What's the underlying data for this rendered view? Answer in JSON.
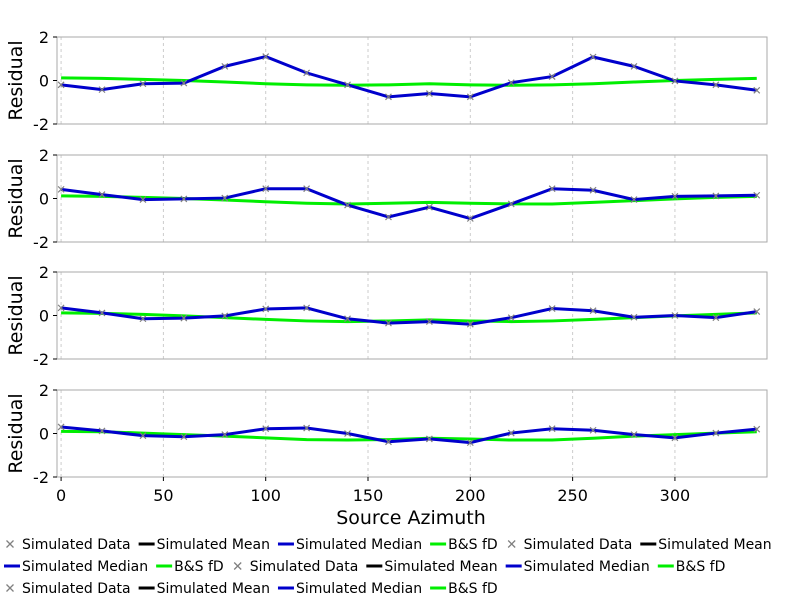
{
  "figure": {
    "xlabel": "Source Azimuth",
    "ylabel": "Residual",
    "x_ticks": [
      0,
      50,
      100,
      150,
      200,
      250,
      300
    ],
    "y_ticks": [
      -2,
      0,
      2
    ],
    "colors": {
      "data": "#808080",
      "mean": "#000000",
      "median": "#0000cc",
      "bs_fd": "#00ee00",
      "grid": "#cccccc",
      "frame": "#aaaaaa"
    }
  },
  "legend": [
    {
      "label": "Simulated Data",
      "kind": "marker",
      "color": "#808080"
    },
    {
      "label": "Simulated Mean",
      "kind": "line",
      "color": "#000000"
    },
    {
      "label": "Simulated Median",
      "kind": "line",
      "color": "#0000cc"
    },
    {
      "label": "B&S fD",
      "kind": "line",
      "color": "#00ee00"
    },
    {
      "label": "Simulated Data",
      "kind": "marker",
      "color": "#808080"
    },
    {
      "label": "Simulated Mean",
      "kind": "line",
      "color": "#000000"
    },
    {
      "label": "Simulated Median",
      "kind": "line",
      "color": "#0000cc"
    },
    {
      "label": "B&S fD",
      "kind": "line",
      "color": "#00ee00"
    },
    {
      "label": "Simulated Data",
      "kind": "marker",
      "color": "#808080"
    },
    {
      "label": "Simulated Mean",
      "kind": "line",
      "color": "#000000"
    },
    {
      "label": "Simulated Median",
      "kind": "line",
      "color": "#0000cc"
    },
    {
      "label": "B&S fD",
      "kind": "line",
      "color": "#00ee00"
    },
    {
      "label": "Simulated Data",
      "kind": "marker",
      "color": "#808080"
    },
    {
      "label": "Simulated Mean",
      "kind": "line",
      "color": "#000000"
    },
    {
      "label": "Simulated Median",
      "kind": "line",
      "color": "#0000cc"
    },
    {
      "label": "B&S fD",
      "kind": "line",
      "color": "#00ee00"
    }
  ],
  "chart_data": [
    {
      "type": "line",
      "xlabel": "",
      "ylabel": "Residual",
      "xlim": [
        -2,
        345
      ],
      "ylim": [
        -2,
        2
      ],
      "grid": true,
      "x": [
        0,
        20,
        40,
        60,
        80,
        100,
        120,
        140,
        160,
        180,
        200,
        220,
        240,
        260,
        280,
        300,
        320,
        340
      ],
      "series": [
        {
          "name": "Simulated Data",
          "style": "marker",
          "values": [
            -0.2,
            -0.42,
            -0.15,
            -0.12,
            0.65,
            1.1,
            0.35,
            -0.2,
            -0.75,
            -0.6,
            -0.75,
            -0.1,
            0.18,
            1.08,
            0.65,
            -0.02,
            -0.2,
            -0.45
          ]
        },
        {
          "name": "Simulated Mean",
          "style": "line",
          "values": [
            -0.2,
            -0.42,
            -0.15,
            -0.12,
            0.65,
            1.1,
            0.35,
            -0.2,
            -0.75,
            -0.6,
            -0.75,
            -0.1,
            0.18,
            1.08,
            0.65,
            -0.02,
            -0.2,
            -0.45
          ]
        },
        {
          "name": "Simulated Median",
          "style": "line",
          "values": [
            -0.2,
            -0.42,
            -0.15,
            -0.12,
            0.65,
            1.1,
            0.35,
            -0.2,
            -0.75,
            -0.6,
            -0.75,
            -0.1,
            0.18,
            1.08,
            0.65,
            -0.02,
            -0.2,
            -0.45
          ]
        },
        {
          "name": "B&S fD",
          "style": "line",
          "values": [
            0.12,
            0.1,
            0.05,
            0.0,
            -0.07,
            -0.15,
            -0.2,
            -0.22,
            -0.2,
            -0.15,
            -0.2,
            -0.22,
            -0.2,
            -0.15,
            -0.07,
            0.0,
            0.05,
            0.1
          ]
        }
      ]
    },
    {
      "type": "line",
      "xlabel": "",
      "ylabel": "Residual",
      "xlim": [
        -2,
        345
      ],
      "ylim": [
        -2,
        2
      ],
      "grid": true,
      "x": [
        0,
        20,
        40,
        60,
        80,
        100,
        120,
        140,
        160,
        180,
        200,
        220,
        240,
        260,
        280,
        300,
        320,
        340
      ],
      "series": [
        {
          "name": "Simulated Data",
          "style": "marker",
          "values": [
            0.42,
            0.18,
            -0.05,
            -0.02,
            0.02,
            0.45,
            0.45,
            -0.3,
            -0.85,
            -0.4,
            -0.92,
            -0.25,
            0.45,
            0.38,
            -0.05,
            0.1,
            0.12,
            0.15
          ]
        },
        {
          "name": "Simulated Mean",
          "style": "line",
          "values": [
            0.42,
            0.18,
            -0.05,
            -0.02,
            0.02,
            0.45,
            0.45,
            -0.3,
            -0.85,
            -0.4,
            -0.92,
            -0.25,
            0.45,
            0.38,
            -0.05,
            0.1,
            0.12,
            0.15
          ]
        },
        {
          "name": "Simulated Median",
          "style": "line",
          "values": [
            0.42,
            0.18,
            -0.05,
            -0.02,
            0.02,
            0.45,
            0.45,
            -0.3,
            -0.85,
            -0.4,
            -0.92,
            -0.25,
            0.45,
            0.38,
            -0.05,
            0.1,
            0.12,
            0.15
          ]
        },
        {
          "name": "B&S fD",
          "style": "line",
          "values": [
            0.12,
            0.1,
            0.05,
            0.0,
            -0.07,
            -0.15,
            -0.22,
            -0.25,
            -0.22,
            -0.18,
            -0.22,
            -0.25,
            -0.25,
            -0.18,
            -0.1,
            -0.02,
            0.05,
            0.1
          ]
        }
      ]
    },
    {
      "type": "line",
      "xlabel": "",
      "ylabel": "Residual",
      "xlim": [
        -2,
        345
      ],
      "ylim": [
        -2,
        2
      ],
      "grid": true,
      "x": [
        0,
        20,
        40,
        60,
        80,
        100,
        120,
        140,
        160,
        180,
        200,
        220,
        240,
        260,
        280,
        300,
        320,
        340
      ],
      "series": [
        {
          "name": "Simulated Data",
          "style": "marker",
          "values": [
            0.35,
            0.12,
            -0.15,
            -0.12,
            -0.02,
            0.3,
            0.35,
            -0.15,
            -0.35,
            -0.28,
            -0.4,
            -0.1,
            0.32,
            0.22,
            -0.08,
            0.0,
            -0.1,
            0.18
          ]
        },
        {
          "name": "Simulated Mean",
          "style": "line",
          "values": [
            0.35,
            0.12,
            -0.15,
            -0.12,
            -0.02,
            0.3,
            0.35,
            -0.15,
            -0.35,
            -0.28,
            -0.4,
            -0.1,
            0.32,
            0.22,
            -0.08,
            0.0,
            -0.1,
            0.18
          ]
        },
        {
          "name": "Simulated Median",
          "style": "line",
          "values": [
            0.35,
            0.12,
            -0.15,
            -0.12,
            -0.02,
            0.3,
            0.35,
            -0.15,
            -0.35,
            -0.28,
            -0.4,
            -0.1,
            0.32,
            0.22,
            -0.08,
            0.0,
            -0.1,
            0.18
          ]
        },
        {
          "name": "B&S fD",
          "style": "line",
          "values": [
            0.12,
            0.1,
            0.05,
            -0.02,
            -0.1,
            -0.18,
            -0.25,
            -0.28,
            -0.25,
            -0.2,
            -0.25,
            -0.28,
            -0.25,
            -0.18,
            -0.1,
            -0.02,
            0.05,
            0.12
          ]
        }
      ]
    },
    {
      "type": "line",
      "xlabel": "Source Azimuth",
      "ylabel": "Residual",
      "xlim": [
        -2,
        345
      ],
      "ylim": [
        -2,
        2
      ],
      "grid": true,
      "x": [
        0,
        20,
        40,
        60,
        80,
        100,
        120,
        140,
        160,
        180,
        200,
        220,
        240,
        260,
        280,
        300,
        320,
        340
      ],
      "series": [
        {
          "name": "Simulated Data",
          "style": "marker",
          "values": [
            0.3,
            0.12,
            -0.1,
            -0.15,
            -0.05,
            0.22,
            0.25,
            0.0,
            -0.38,
            -0.25,
            -0.42,
            0.02,
            0.22,
            0.15,
            -0.05,
            -0.2,
            0.02,
            0.2
          ]
        },
        {
          "name": "Simulated Mean",
          "style": "line",
          "values": [
            0.3,
            0.12,
            -0.1,
            -0.15,
            -0.05,
            0.22,
            0.25,
            0.0,
            -0.38,
            -0.25,
            -0.42,
            0.02,
            0.22,
            0.15,
            -0.05,
            -0.2,
            0.02,
            0.2
          ]
        },
        {
          "name": "Simulated Median",
          "style": "line",
          "values": [
            0.3,
            0.12,
            -0.1,
            -0.15,
            -0.05,
            0.22,
            0.25,
            0.0,
            -0.38,
            -0.25,
            -0.42,
            0.02,
            0.22,
            0.15,
            -0.05,
            -0.2,
            0.02,
            0.2
          ]
        },
        {
          "name": "B&S fD",
          "style": "line",
          "values": [
            0.1,
            0.08,
            0.02,
            -0.05,
            -0.12,
            -0.2,
            -0.28,
            -0.3,
            -0.28,
            -0.22,
            -0.25,
            -0.3,
            -0.3,
            -0.22,
            -0.12,
            -0.05,
            0.02,
            0.08
          ]
        }
      ]
    }
  ]
}
